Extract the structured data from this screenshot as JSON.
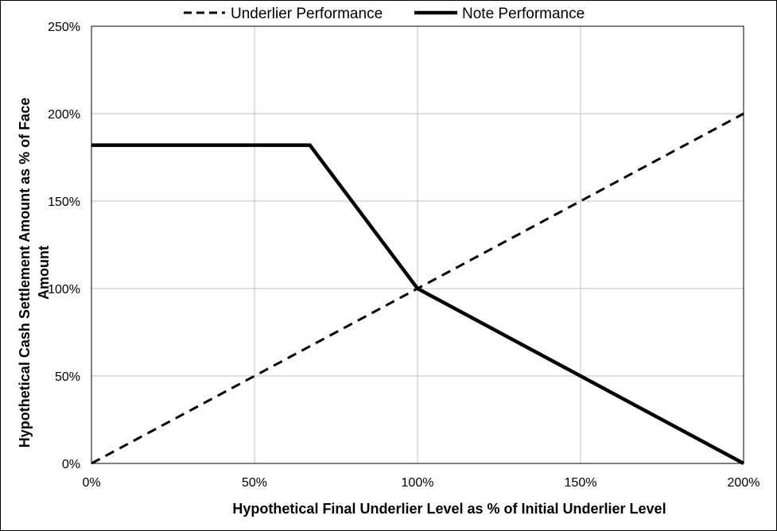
{
  "chart_data": {
    "type": "line",
    "title": "",
    "xlabel": "Hypothetical Final Underlier Level as % of Initial Underlier Level",
    "ylabel_line1": "Hypothetical Cash Settlement Amount as % of Face",
    "ylabel_line2": "Amount",
    "xlim": [
      0,
      200
    ],
    "ylim": [
      0,
      250
    ],
    "x_ticks": [
      0,
      50,
      100,
      150,
      200
    ],
    "y_ticks": [
      0,
      50,
      100,
      150,
      200,
      250
    ],
    "x_tick_labels": [
      "0%",
      "50%",
      "100%",
      "150%",
      "200%"
    ],
    "y_tick_labels": [
      "0%",
      "50%",
      "100%",
      "150%",
      "200%",
      "250%"
    ],
    "grid": true,
    "legend_position": "top",
    "series": [
      {
        "name": "Underlier Performance",
        "style": "dashed",
        "color": "#000000",
        "x": [
          0,
          200
        ],
        "y": [
          0,
          200
        ]
      },
      {
        "name": "Note Performance",
        "style": "solid",
        "color": "#000000",
        "x": [
          0,
          67,
          100,
          150,
          200
        ],
        "y": [
          182,
          182,
          100,
          50,
          0
        ]
      }
    ]
  }
}
